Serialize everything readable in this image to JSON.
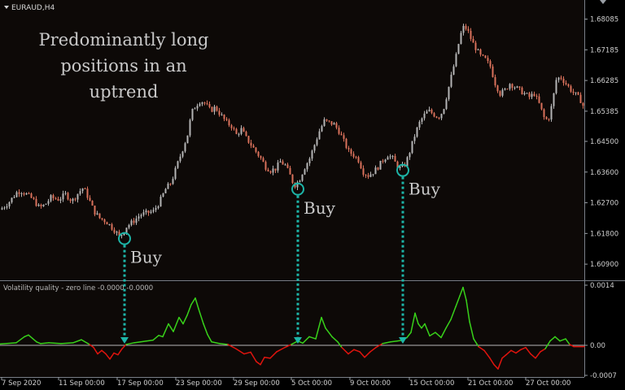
{
  "window": {
    "symbol_label": "EURAUD,H4",
    "indicator_label": "Volatility quality - zero line -0.0000 -0.0000"
  },
  "annotation": {
    "lines": [
      "Predominantly long",
      "positions in an",
      "uptrend"
    ],
    "buy_label": "Buy"
  },
  "colors": {
    "background": "#0d0907",
    "bull_candle": "#b4b4b4",
    "bear_candle": "#d9715b",
    "signal": "#1db5a8",
    "vq_positive": "#38d11a",
    "vq_negative": "#e0140e",
    "zero_line": "#b8b8b8",
    "axis_text": "#cfcfcf"
  },
  "chart_data": [
    {
      "type": "candlestick",
      "title": "EURAUD,H4",
      "price_range": [
        1.6045,
        1.6855
      ],
      "y_ticks": [
        "1.68085",
        "1.67185",
        "1.66285",
        "1.65385",
        "1.64500",
        "1.63600",
        "1.62700",
        "1.61800",
        "1.60900"
      ],
      "x_ticks": [
        "7 Sep 2020",
        "11 Sep 00:00",
        "17 Sep 00:00",
        "23 Sep 00:00",
        "29 Sep 00:00",
        "5 Oct 00:00",
        "9 Oct 00:00",
        "15 Oct 00:00",
        "21 Oct 00:00",
        "27 Oct 00:00"
      ],
      "close_path": [
        [
          0,
          1.625
        ],
        [
          10,
          1.627
        ],
        [
          20,
          1.63
        ],
        [
          25,
          1.6305
        ],
        [
          32,
          1.6295
        ],
        [
          40,
          1.628
        ],
        [
          48,
          1.6255
        ],
        [
          55,
          1.6265
        ],
        [
          62,
          1.6285
        ],
        [
          72,
          1.628
        ],
        [
          80,
          1.6295
        ],
        [
          88,
          1.6275
        ],
        [
          96,
          1.63
        ],
        [
          102,
          1.6315
        ],
        [
          108,
          1.6285
        ],
        [
          115,
          1.6245
        ],
        [
          122,
          1.6225
        ],
        [
          130,
          1.6215
        ],
        [
          136,
          1.62
        ],
        [
          142,
          1.6185
        ],
        [
          146,
          1.617
        ],
        [
          150,
          1.618
        ],
        [
          155,
          1.62
        ],
        [
          163,
          1.6215
        ],
        [
          172,
          1.6235
        ],
        [
          180,
          1.624
        ],
        [
          188,
          1.6245
        ],
        [
          195,
          1.627
        ],
        [
          203,
          1.631
        ],
        [
          210,
          1.633
        ],
        [
          217,
          1.638
        ],
        [
          223,
          1.642
        ],
        [
          230,
          1.647
        ],
        [
          235,
          1.6535
        ],
        [
          240,
          1.6555
        ],
        [
          246,
          1.657
        ],
        [
          252,
          1.656
        ],
        [
          258,
          1.654
        ],
        [
          264,
          1.655
        ],
        [
          270,
          1.653
        ],
        [
          278,
          1.6505
        ],
        [
          284,
          1.6495
        ],
        [
          290,
          1.647
        ],
        [
          296,
          1.6485
        ],
        [
          302,
          1.646
        ],
        [
          308,
          1.644
        ],
        [
          314,
          1.642
        ],
        [
          320,
          1.64
        ],
        [
          326,
          1.6375
        ],
        [
          332,
          1.6365
        ],
        [
          338,
          1.637
        ],
        [
          344,
          1.639
        ],
        [
          350,
          1.638
        ],
        [
          356,
          1.635
        ],
        [
          361,
          1.632
        ],
        [
          367,
          1.6335
        ],
        [
          373,
          1.637
        ],
        [
          380,
          1.64
        ],
        [
          386,
          1.644
        ],
        [
          392,
          1.648
        ],
        [
          398,
          1.651
        ],
        [
          404,
          1.6505
        ],
        [
          410,
          1.65
        ],
        [
          416,
          1.648
        ],
        [
          422,
          1.645
        ],
        [
          428,
          1.642
        ],
        [
          434,
          1.641
        ],
        [
          440,
          1.6395
        ],
        [
          446,
          1.636
        ],
        [
          452,
          1.635
        ],
        [
          458,
          1.636
        ],
        [
          464,
          1.6375
        ],
        [
          470,
          1.6395
        ],
        [
          476,
          1.641
        ],
        [
          482,
          1.64
        ],
        [
          487,
          1.638
        ],
        [
          492,
          1.637
        ],
        [
          498,
          1.6385
        ],
        [
          503,
          1.642
        ],
        [
          508,
          1.646
        ],
        [
          514,
          1.65
        ],
        [
          520,
          1.6525
        ],
        [
          526,
          1.654
        ],
        [
          532,
          1.653
        ],
        [
          538,
          1.652
        ],
        [
          544,
          1.654
        ],
        [
          550,
          1.66
        ],
        [
          555,
          1.665
        ],
        [
          560,
          1.67
        ],
        [
          565,
          1.676
        ],
        [
          570,
          1.679
        ],
        [
          575,
          1.677
        ],
        [
          580,
          1.674
        ],
        [
          585,
          1.672
        ],
        [
          590,
          1.67
        ],
        [
          596,
          1.669
        ],
        [
          602,
          1.667
        ],
        [
          608,
          1.662
        ],
        [
          614,
          1.659
        ],
        [
          620,
          1.66
        ],
        [
          626,
          1.662
        ],
        [
          632,
          1.661
        ],
        [
          638,
          1.66
        ],
        [
          644,
          1.659
        ],
        [
          650,
          1.658
        ],
        [
          656,
          1.659
        ],
        [
          662,
          1.656
        ],
        [
          668,
          1.652
        ],
        [
          673,
          1.651
        ],
        [
          678,
          1.656
        ],
        [
          683,
          1.663
        ],
        [
          688,
          1.664
        ],
        [
          693,
          1.6625
        ],
        [
          698,
          1.661
        ],
        [
          703,
          1.6595
        ],
        [
          708,
          1.6585
        ],
        [
          713,
          1.657
        ],
        [
          718,
          1.6545
        ]
      ],
      "buy_signals": [
        {
          "x": 153,
          "price": 1.6165
        },
        {
          "x": 366,
          "price": 1.631
        },
        {
          "x": 495,
          "price": 1.6365
        }
      ]
    },
    {
      "type": "line",
      "title": "Volatility quality - zero line -0.0000 -0.0000",
      "y_range": [
        -0.0007,
        0.0014
      ],
      "y_ticks": [
        "0.0014",
        "0.00",
        "-0.0007"
      ],
      "series": [
        {
          "values": [
            [
              0,
              3e-05
            ],
            [
              20,
              6e-05
            ],
            [
              30,
              0.0002
            ],
            [
              35,
              0.00024
            ],
            [
              40,
              0.00016
            ],
            [
              45,
              8e-05
            ],
            [
              50,
              4e-05
            ],
            [
              60,
              6e-05
            ],
            [
              75,
              4e-05
            ],
            [
              90,
              6e-05
            ],
            [
              100,
              0.00013
            ],
            [
              110,
              2e-05
            ],
            [
              115,
              -5e-05
            ],
            [
              120,
              -0.0002
            ],
            [
              125,
              -0.00012
            ],
            [
              130,
              -0.0002
            ],
            [
              135,
              -0.00032
            ],
            [
              140,
              -0.00018
            ],
            [
              145,
              -0.00022
            ],
            [
              150,
              -8e-05
            ],
            [
              155,
              2e-05
            ],
            [
              165,
              6e-05
            ],
            [
              180,
              0.0001
            ],
            [
              188,
              0.00012
            ],
            [
              195,
              0.00023
            ],
            [
              200,
              0.0002
            ],
            [
              207,
              0.0005
            ],
            [
              213,
              0.00032
            ],
            [
              220,
              0.00065
            ],
            [
              225,
              0.0005
            ],
            [
              230,
              0.0007
            ],
            [
              235,
              0.00095
            ],
            [
              240,
              0.0011
            ],
            [
              244,
              0.00085
            ],
            [
              250,
              0.0005
            ],
            [
              255,
              0.00025
            ],
            [
              260,
              8e-05
            ],
            [
              270,
              4e-05
            ],
            [
              280,
              2e-05
            ],
            [
              290,
              -8e-05
            ],
            [
              300,
              -0.0002
            ],
            [
              308,
              -0.00016
            ],
            [
              315,
              -0.00038
            ],
            [
              320,
              -0.00045
            ],
            [
              325,
              -0.00028
            ],
            [
              332,
              -0.0003
            ],
            [
              340,
              -0.00015
            ],
            [
              350,
              -5e-05
            ],
            [
              358,
              2e-05
            ],
            [
              366,
              0.0001
            ],
            [
              372,
              5e-05
            ],
            [
              380,
              0.0002
            ],
            [
              388,
              0.00015
            ],
            [
              395,
              0.00065
            ],
            [
              400,
              0.0004
            ],
            [
              408,
              0.0002
            ],
            [
              415,
              8e-05
            ],
            [
              420,
              -5e-05
            ],
            [
              428,
              -0.0002
            ],
            [
              435,
              -0.0001
            ],
            [
              442,
              -0.00015
            ],
            [
              448,
              -0.00028
            ],
            [
              455,
              -0.00015
            ],
            [
              462,
              -5e-05
            ],
            [
              470,
              4e-05
            ],
            [
              480,
              8e-05
            ],
            [
              488,
              0.0001
            ],
            [
              495,
              0.00012
            ],
            [
              500,
              0.00018
            ],
            [
              505,
              0.0003
            ],
            [
              510,
              0.00075
            ],
            [
              514,
              0.0005
            ],
            [
              518,
              0.0004
            ],
            [
              522,
              0.0005
            ],
            [
              528,
              0.00022
            ],
            [
              535,
              0.0003
            ],
            [
              542,
              0.00018
            ],
            [
              548,
              0.0004
            ],
            [
              554,
              0.0006
            ],
            [
              560,
              0.0009
            ],
            [
              565,
              0.00115
            ],
            [
              569,
              0.00135
            ],
            [
              573,
              0.00105
            ],
            [
              577,
              0.00055
            ],
            [
              582,
              0.00015
            ],
            [
              588,
              -3e-05
            ],
            [
              595,
              -0.00012
            ],
            [
              602,
              -0.0003
            ],
            [
              607,
              -0.00045
            ],
            [
              612,
              -0.00055
            ],
            [
              617,
              -0.0003
            ],
            [
              622,
              -0.00022
            ],
            [
              628,
              -0.00012
            ],
            [
              634,
              -0.00018
            ],
            [
              640,
              -0.0001
            ],
            [
              646,
              -5e-05
            ],
            [
              652,
              -0.0002
            ],
            [
              658,
              -0.0003
            ],
            [
              664,
              -0.00015
            ],
            [
              670,
              -8e-05
            ],
            [
              676,
              0.0001
            ],
            [
              682,
              0.0002
            ],
            [
              688,
              0.0001
            ],
            [
              695,
              0.00015
            ],
            [
              700,
              2e-05
            ],
            [
              705,
              -3e-05
            ],
            [
              718,
              -3e-05
            ]
          ]
        }
      ]
    }
  ]
}
